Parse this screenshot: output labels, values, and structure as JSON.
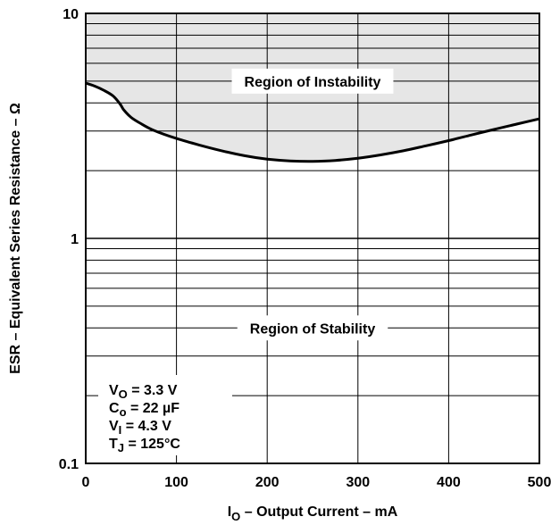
{
  "chart_data": {
    "type": "line",
    "title": "",
    "xlabel": {
      "main": "I",
      "sub": "O",
      "rest": " – Output Current – mA"
    },
    "ylabel": "ESR – Equivalent Series Resistance – Ω",
    "xlim": [
      0,
      500
    ],
    "ylim": [
      0.1,
      10
    ],
    "yscale": "log",
    "grid": true,
    "x_ticks": [
      0,
      100,
      200,
      300,
      400,
      500
    ],
    "x_tick_labels": [
      "0",
      "100",
      "200",
      "300",
      "400",
      "500"
    ],
    "y_ticks": [
      0.1,
      1,
      10
    ],
    "y_tick_labels": [
      "0.1",
      "1",
      "10"
    ],
    "series": [
      {
        "x": [
          0,
          10,
          20,
          30,
          38,
          42,
          50,
          60,
          75,
          100,
          125,
          150,
          175,
          200,
          225,
          250,
          275,
          300,
          325,
          350,
          375,
          400,
          425,
          450,
          475,
          500
        ],
        "y": [
          4.9,
          4.75,
          4.55,
          4.3,
          3.95,
          3.72,
          3.45,
          3.25,
          3.02,
          2.78,
          2.6,
          2.45,
          2.33,
          2.25,
          2.21,
          2.2,
          2.22,
          2.27,
          2.35,
          2.45,
          2.58,
          2.72,
          2.88,
          3.05,
          3.22,
          3.4
        ],
        "color": "#000000"
      }
    ],
    "shading": {
      "region": "above-curve",
      "color": "#e6e6e6"
    },
    "annotations": [
      {
        "text": "Region of Instability",
        "x": 250,
        "y": 5
      },
      {
        "text": "Region of Stability",
        "x": 250,
        "y": 0.4
      }
    ],
    "conditions": [
      {
        "main": "V",
        "sub": "O",
        "rest": " = 3.3 V"
      },
      {
        "main": "C",
        "sub": "o",
        "rest": " = 22 µF"
      },
      {
        "main": "V",
        "sub": "I",
        "rest": " = 4.3 V"
      },
      {
        "main": "T",
        "sub": "J",
        "rest": " = 125°C"
      }
    ]
  }
}
